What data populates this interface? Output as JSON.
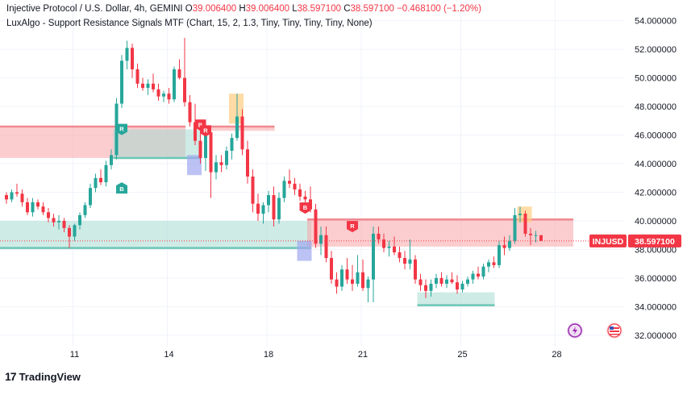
{
  "header": {
    "symbol_line": "Injective Protocol / U.S. Dollar, 4h, GEMINI",
    "open_label": "O",
    "open": "39.006400",
    "high_label": "H",
    "high": "39.006400",
    "low_label": "L",
    "low": "38.597100",
    "close_label": "C",
    "close": "38.597100",
    "change": "−0.468100 (−1.20%)",
    "indicator": "LuxAlgo - Support Resistance Signals MTF (Chart, 15, 2, 1.3, Tiny, Tiny, Tiny, Tiny, None)"
  },
  "price_tag": {
    "symbol": "INJUSD",
    "price": "38.597100",
    "color": "#f23645"
  },
  "footer": {
    "brand": "TradingView"
  },
  "colors": {
    "up": "#26a69a",
    "down": "#f23645",
    "resistance": "#f7a4a8",
    "support": "#a7dbd2"
  },
  "chart_data": {
    "type": "candlestick",
    "ylim": [
      31.2,
      55.0
    ],
    "y_ticks": [
      "54.000000",
      "52.000000",
      "50.000000",
      "48.000000",
      "46.000000",
      "44.000000",
      "42.000000",
      "40.000000",
      "38.000000",
      "36.000000",
      "34.000000",
      "32.000000"
    ],
    "y_tick_values": [
      54,
      52,
      50,
      48,
      46,
      44,
      42,
      40,
      38,
      36,
      34,
      32
    ],
    "x_ticks": [
      "11",
      "14",
      "18",
      "21",
      "25",
      "28"
    ],
    "x_tick_index": [
      13,
      31,
      50,
      68,
      87,
      105
    ],
    "last_price": 38.5971,
    "candles": [
      [
        41.8,
        42.0,
        41.2,
        41.5
      ],
      [
        41.5,
        42.2,
        41.3,
        42.0
      ],
      [
        42.0,
        42.6,
        41.7,
        41.9
      ],
      [
        41.9,
        42.2,
        41.0,
        41.3
      ],
      [
        41.3,
        41.6,
        40.4,
        40.6
      ],
      [
        40.6,
        41.6,
        40.3,
        41.3
      ],
      [
        41.3,
        41.5,
        40.8,
        41.0
      ],
      [
        41.0,
        41.3,
        40.4,
        40.6
      ],
      [
        40.6,
        40.9,
        39.9,
        40.2
      ],
      [
        40.2,
        40.5,
        39.6,
        39.9
      ],
      [
        39.9,
        40.4,
        39.4,
        40.0
      ],
      [
        40.0,
        40.2,
        39.2,
        39.5
      ],
      [
        39.5,
        39.7,
        38.1,
        38.9
      ],
      [
        38.9,
        39.8,
        38.6,
        39.7
      ],
      [
        39.7,
        40.6,
        39.4,
        40.4
      ],
      [
        40.4,
        41.3,
        40.2,
        41.1
      ],
      [
        41.1,
        42.6,
        40.9,
        42.3
      ],
      [
        42.3,
        43.3,
        42.0,
        43.0
      ],
      [
        43.0,
        43.6,
        42.5,
        42.7
      ],
      [
        42.7,
        44.2,
        42.4,
        43.9
      ],
      [
        43.9,
        45.0,
        43.6,
        44.6
      ],
      [
        44.6,
        48.6,
        44.3,
        48.2
      ],
      [
        48.2,
        51.6,
        47.9,
        51.2
      ],
      [
        51.2,
        52.6,
        50.6,
        52.1
      ],
      [
        52.1,
        52.4,
        50.0,
        50.6
      ],
      [
        50.6,
        51.0,
        49.3,
        49.6
      ],
      [
        49.6,
        50.0,
        49.1,
        49.3
      ],
      [
        49.3,
        49.9,
        48.8,
        49.6
      ],
      [
        49.6,
        50.3,
        49.0,
        49.2
      ],
      [
        49.2,
        49.6,
        48.4,
        48.7
      ],
      [
        48.7,
        49.1,
        48.3,
        48.9
      ],
      [
        48.9,
        49.3,
        48.2,
        48.5
      ],
      [
        48.5,
        50.8,
        48.3,
        50.6
      ],
      [
        50.6,
        51.3,
        49.9,
        50.0
      ],
      [
        50.0,
        52.8,
        48.0,
        48.3
      ],
      [
        48.3,
        48.8,
        46.6,
        46.9
      ],
      [
        46.9,
        48.2,
        45.3,
        45.6
      ],
      [
        45.6,
        46.1,
        44.0,
        44.4
      ],
      [
        44.4,
        46.6,
        43.5,
        46.2
      ],
      [
        46.2,
        46.6,
        41.6,
        43.4
      ],
      [
        43.4,
        44.6,
        42.9,
        44.1
      ],
      [
        44.1,
        44.6,
        43.4,
        43.9
      ],
      [
        43.9,
        45.2,
        43.6,
        44.9
      ],
      [
        44.9,
        46.1,
        44.3,
        45.8
      ],
      [
        45.8,
        48.9,
        45.6,
        47.3
      ],
      [
        47.3,
        47.8,
        44.6,
        45.0
      ],
      [
        45.0,
        45.6,
        42.6,
        43.1
      ],
      [
        43.1,
        43.6,
        40.6,
        41.2
      ],
      [
        41.2,
        41.9,
        40.0,
        40.5
      ],
      [
        40.5,
        41.3,
        39.8,
        41.1
      ],
      [
        41.1,
        42.1,
        40.6,
        41.8
      ],
      [
        41.8,
        42.4,
        39.6,
        40.1
      ],
      [
        40.1,
        42.0,
        39.8,
        41.6
      ],
      [
        41.6,
        43.1,
        41.3,
        42.8
      ],
      [
        42.8,
        43.6,
        42.3,
        42.6
      ],
      [
        42.6,
        43.0,
        41.8,
        42.2
      ],
      [
        42.2,
        42.6,
        41.4,
        41.7
      ],
      [
        41.7,
        42.1,
        41.0,
        41.5
      ],
      [
        41.5,
        42.4,
        40.6,
        40.8
      ],
      [
        40.8,
        41.2,
        38.1,
        38.4
      ],
      [
        38.4,
        39.6,
        37.6,
        39.0
      ],
      [
        39.0,
        39.6,
        37.1,
        37.4
      ],
      [
        37.4,
        37.9,
        35.6,
        35.9
      ],
      [
        35.9,
        36.4,
        34.9,
        35.4
      ],
      [
        35.4,
        36.9,
        35.1,
        36.6
      ],
      [
        36.6,
        37.4,
        35.6,
        35.9
      ],
      [
        35.9,
        36.9,
        35.1,
        35.6
      ],
      [
        35.6,
        37.6,
        35.4,
        36.4
      ],
      [
        36.4,
        37.3,
        35.1,
        35.3
      ],
      [
        35.3,
        36.1,
        34.3,
        35.9
      ],
      [
        35.9,
        39.6,
        34.3,
        39.1
      ],
      [
        39.1,
        39.6,
        38.4,
        38.7
      ],
      [
        38.7,
        39.1,
        37.8,
        38.1
      ],
      [
        38.1,
        38.6,
        37.5,
        38.2
      ],
      [
        38.2,
        38.9,
        37.6,
        37.8
      ],
      [
        37.8,
        38.2,
        37.1,
        37.4
      ],
      [
        37.4,
        37.9,
        36.6,
        37.0
      ],
      [
        37.0,
        38.7,
        36.6,
        37.3
      ],
      [
        37.3,
        37.6,
        35.6,
        35.9
      ],
      [
        35.9,
        36.3,
        35.1,
        35.5
      ],
      [
        35.5,
        35.9,
        34.6,
        35.1
      ],
      [
        35.1,
        35.9,
        34.7,
        35.6
      ],
      [
        35.6,
        36.3,
        35.3,
        36.0
      ],
      [
        36.0,
        36.4,
        35.4,
        35.6
      ],
      [
        35.6,
        36.2,
        35.3,
        35.9
      ],
      [
        35.9,
        36.4,
        35.6,
        35.7
      ],
      [
        35.7,
        36.2,
        34.9,
        35.2
      ],
      [
        35.2,
        35.8,
        35.0,
        35.6
      ],
      [
        35.6,
        36.1,
        35.4,
        35.9
      ],
      [
        35.9,
        36.5,
        35.6,
        36.3
      ],
      [
        36.3,
        36.8,
        35.9,
        36.1
      ],
      [
        36.1,
        37.0,
        35.9,
        36.8
      ],
      [
        36.8,
        37.3,
        36.4,
        37.1
      ],
      [
        37.1,
        37.5,
        36.7,
        36.9
      ],
      [
        36.9,
        38.6,
        36.7,
        38.3
      ],
      [
        38.3,
        38.9,
        37.6,
        38.1
      ],
      [
        38.1,
        39.0,
        37.9,
        38.6
      ],
      [
        38.6,
        40.9,
        38.4,
        40.4
      ],
      [
        40.4,
        41.0,
        39.9,
        40.5
      ],
      [
        40.5,
        40.7,
        38.9,
        39.1
      ],
      [
        39.1,
        39.5,
        38.3,
        39.0
      ],
      [
        39.0,
        39.3,
        38.5,
        39.0
      ],
      [
        39.0,
        39.0,
        38.6,
        38.6
      ]
    ],
    "zones": [
      {
        "kind": "resistance",
        "from_index": 0,
        "to_index": 34,
        "y_top": 46.6,
        "y_bottom": 44.4,
        "line": 46.6
      },
      {
        "kind": "resistance",
        "from_index": 38,
        "to_index": 51,
        "y_top": 46.6,
        "y_bottom": 46.3,
        "line": 46.6
      },
      {
        "kind": "support",
        "from_index": 21,
        "to_index": 37,
        "y_top": 46.4,
        "y_bottom": 44.4,
        "line": 44.4
      },
      {
        "kind": "support",
        "from_index": 0,
        "to_index": 58,
        "y_top": 40.0,
        "y_bottom": 38.1,
        "line": 38.1
      },
      {
        "kind": "resistance",
        "from_index": 58,
        "to_index": 108,
        "y_top": 40.1,
        "y_bottom": 38.2,
        "line": 40.1
      },
      {
        "kind": "support",
        "from_index": 79,
        "to_index": 93,
        "y_top": 35.0,
        "y_bottom": 34.1,
        "line": 34.1
      }
    ],
    "highlights": [
      {
        "kind": "orange",
        "index": 44,
        "y_top": 48.9,
        "y_bottom": 46.8
      },
      {
        "kind": "orange",
        "index": 99,
        "y_top": 41.0,
        "y_bottom": 39.9
      },
      {
        "kind": "blue",
        "index": 36,
        "y_top": 44.6,
        "y_bottom": 43.2
      },
      {
        "kind": "blue",
        "index": 57,
        "y_top": 38.6,
        "y_bottom": 37.2
      }
    ],
    "signals": [
      {
        "type": "R",
        "dir": "down",
        "index": 22,
        "y": 46.0,
        "color": "#26a69a"
      },
      {
        "type": "B",
        "dir": "up",
        "index": 22,
        "y": 42.7,
        "color": "#26a69a"
      },
      {
        "type": "B",
        "dir": "down",
        "index": 37,
        "y": 46.3,
        "color": "#f23645"
      },
      {
        "type": "R",
        "dir": "down",
        "index": 38,
        "y": 45.9,
        "color": "#f23645"
      },
      {
        "type": "B",
        "dir": "down",
        "index": 57,
        "y": 40.5,
        "color": "#f23645"
      },
      {
        "type": "R",
        "dir": "down",
        "index": 66,
        "y": 39.2,
        "color": "#f23645"
      }
    ]
  }
}
